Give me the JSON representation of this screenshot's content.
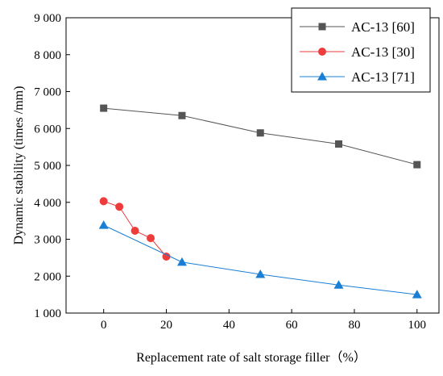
{
  "chart_data": {
    "type": "line",
    "title": "",
    "xlabel": "Replacement rate of salt storage filler（%）",
    "ylabel": "Dynamic stability (times /mm)",
    "xlim": [
      -12,
      107
    ],
    "ylim": [
      1000,
      9000
    ],
    "xticks": [
      0,
      20,
      40,
      60,
      80,
      100
    ],
    "xtick_labels": [
      "0",
      "20",
      "40",
      "60",
      "80",
      "100"
    ],
    "yticks": [
      1000,
      2000,
      3000,
      4000,
      5000,
      6000,
      7000,
      8000,
      9000
    ],
    "ytick_labels": [
      "1 000",
      "2 000",
      "3 000",
      "4 000",
      "5 000",
      "6 000",
      "7 000",
      "8 000",
      "9 000"
    ],
    "grid": false,
    "legend_position": "top-right",
    "series": [
      {
        "name": "AC-13 [60]",
        "color": "#555555",
        "marker": "square",
        "x": [
          0,
          25,
          50,
          75,
          100
        ],
        "y": [
          6550,
          6350,
          5880,
          5580,
          5020
        ]
      },
      {
        "name": "AC-13 [30]",
        "color": "#ee3b3b",
        "marker": "circle",
        "x": [
          0,
          5,
          10,
          15,
          20
        ],
        "y": [
          4030,
          3880,
          3230,
          3030,
          2530
        ]
      },
      {
        "name": "AC-13 [71]",
        "color": "#1a7fd4",
        "marker": "triangle",
        "x": [
          0,
          25,
          50,
          75,
          100
        ],
        "y": [
          3380,
          2380,
          2050,
          1760,
          1500
        ]
      }
    ]
  }
}
